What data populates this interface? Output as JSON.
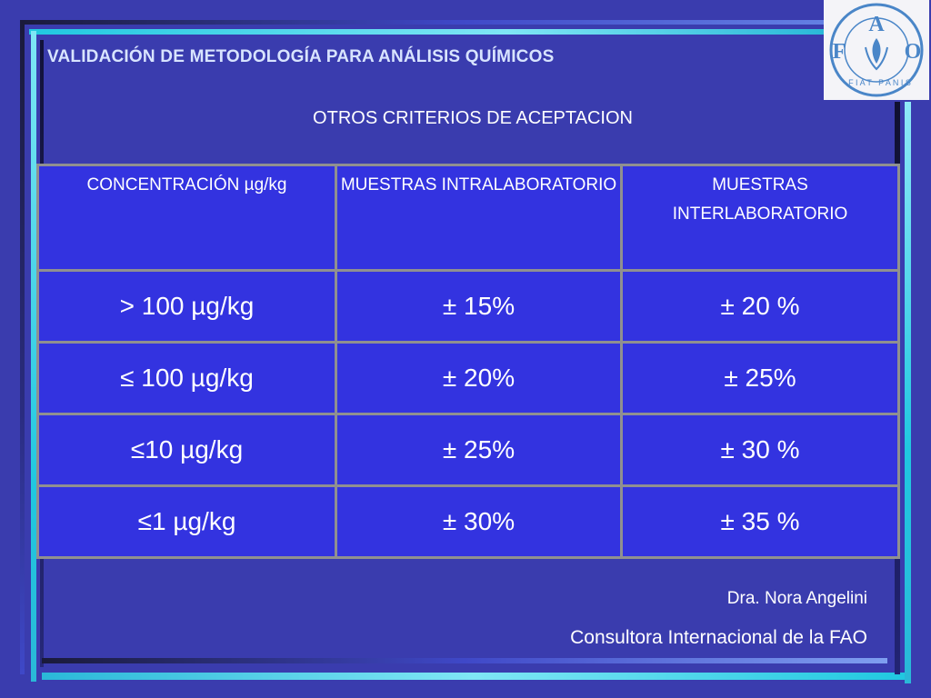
{
  "slide": {
    "title": "VALIDACIÓN DE METODOLOGÍA PARA ANÁLISIS QUÍMICOS",
    "subtitle": "OTROS CRITERIOS DE ACEPTACION"
  },
  "logo": {
    "letters": [
      "F",
      "A",
      "O"
    ],
    "motto": "FIAT PANIS"
  },
  "table": {
    "headers": [
      "CONCENTRACIÓN µg/kg",
      "MUESTRAS INTRALABORATORIO",
      "MUESTRAS INTERLABORATORIO"
    ],
    "rows": [
      [
        "> 100 µg/kg",
        "± 15%",
        "± 20 %"
      ],
      [
        "≤ 100 µg/kg",
        "± 20%",
        "± 25%"
      ],
      [
        "≤10 µg/kg",
        "± 25%",
        "± 30 %"
      ],
      [
        "≤1 µg/kg",
        "± 30%",
        "± 35 %"
      ]
    ]
  },
  "footer": {
    "author": "Dra. Nora Angelini",
    "role": "Consultora Internacional de la FAO"
  },
  "colors": {
    "background": "#3a3cae",
    "table_fill": "#3333e0",
    "title_text": "#d8e4ff",
    "accent_cyan": "#20c8e0"
  }
}
